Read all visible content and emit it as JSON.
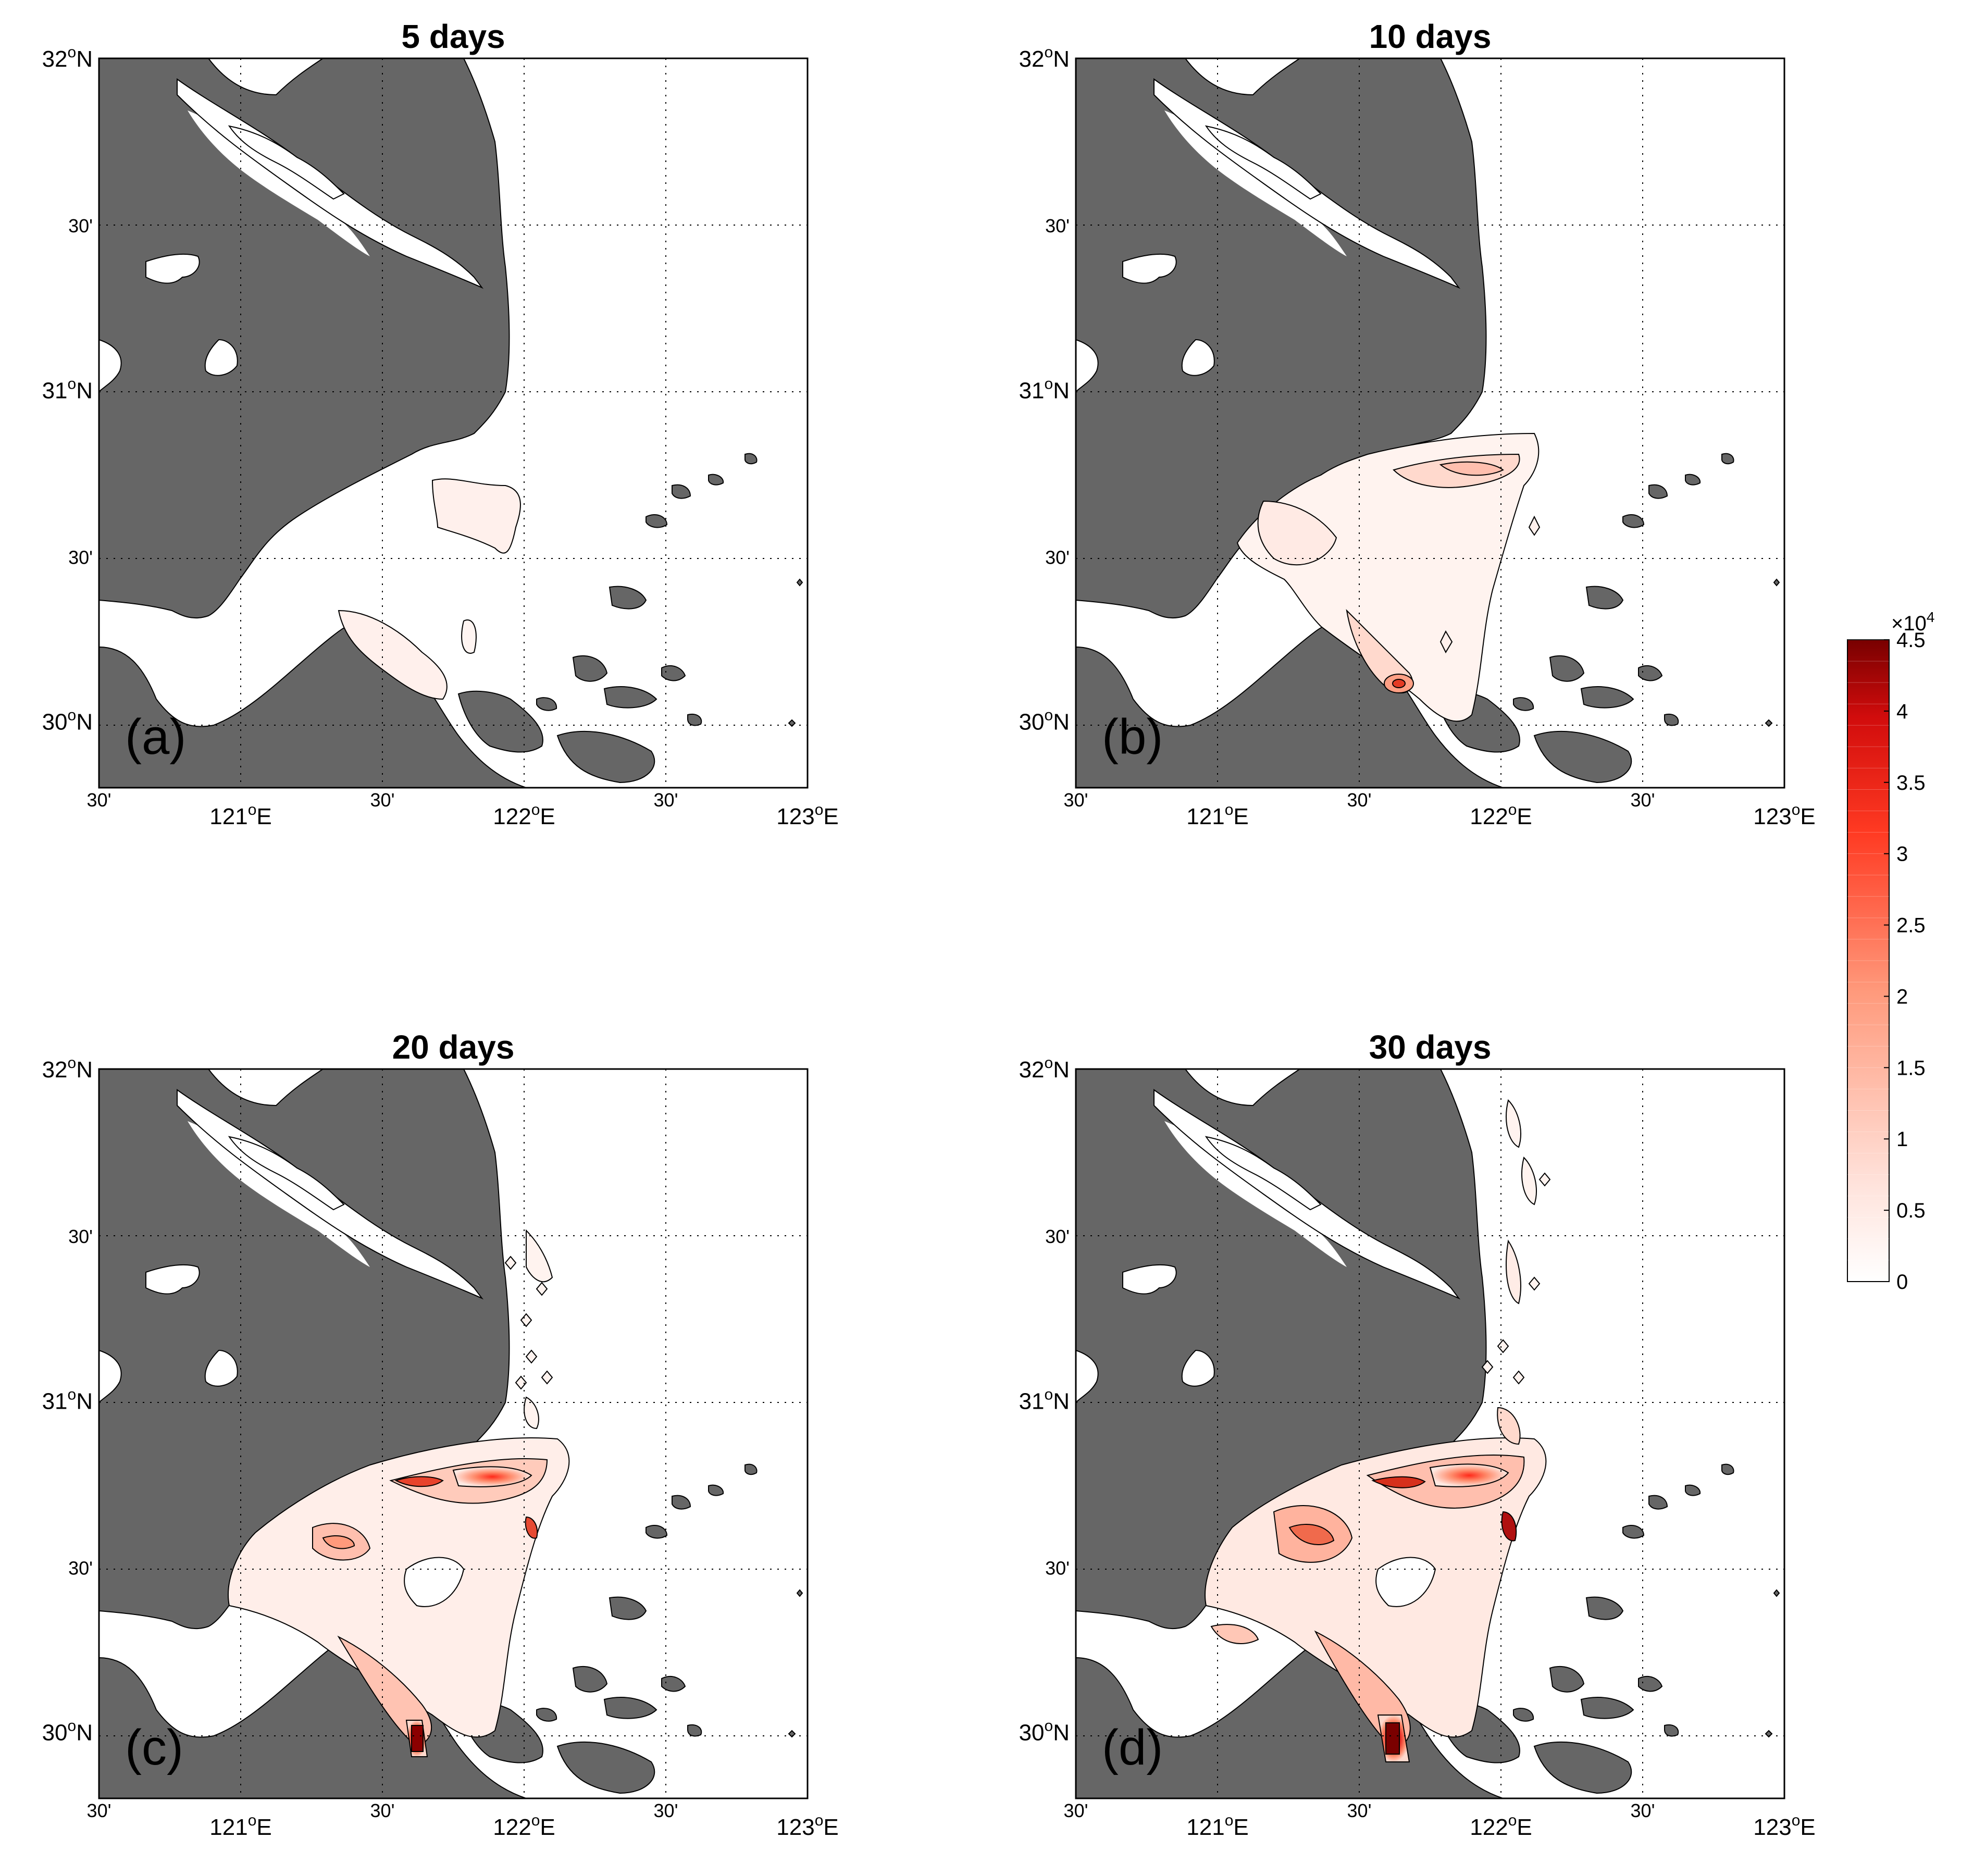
{
  "figure": {
    "panels": [
      {
        "id": "a",
        "title": "5 days",
        "label": "(a)"
      },
      {
        "id": "b",
        "title": "10 days",
        "label": "(b)"
      },
      {
        "id": "c",
        "title": "20 days",
        "label": "(c)"
      },
      {
        "id": "d",
        "title": "30 days",
        "label": "(d)"
      }
    ],
    "axes": {
      "lat_ticks": [
        {
          "value": 32.0,
          "main": "32",
          "sup": "o",
          "suffix": "N"
        },
        {
          "value": 31.5,
          "main": "30'",
          "sup": "",
          "suffix": ""
        },
        {
          "value": 31.0,
          "main": "31",
          "sup": "o",
          "suffix": "N"
        },
        {
          "value": 30.5,
          "main": "30'",
          "sup": "",
          "suffix": ""
        },
        {
          "value": 30.0,
          "main": "30",
          "sup": "o",
          "suffix": "N"
        }
      ],
      "lon_ticks": [
        {
          "value": 120.5,
          "main": "30'",
          "sup": "",
          "suffix": ""
        },
        {
          "value": 121.0,
          "main": "121",
          "sup": "o",
          "suffix": "E"
        },
        {
          "value": 121.5,
          "main": "30'",
          "sup": "",
          "suffix": ""
        },
        {
          "value": 122.0,
          "main": "122",
          "sup": "o",
          "suffix": "E"
        },
        {
          "value": 122.5,
          "main": "30'",
          "sup": "",
          "suffix": ""
        },
        {
          "value": 123.0,
          "main": "123",
          "sup": "o",
          "suffix": "E"
        }
      ],
      "lon_range": [
        120.5,
        123.0
      ],
      "lat_range": [
        29.8,
        32.0
      ],
      "grid": "dotted"
    },
    "colorbar": {
      "exponent_text": "×10",
      "exponent_power": "4",
      "min": 0,
      "max": 4.5,
      "tick_labels": [
        "0",
        "0.5",
        "1",
        "1.5",
        "2",
        "2.5",
        "3",
        "3.5",
        "4",
        "4.5"
      ],
      "color_low": "#ffffff",
      "color_mid": "#ff2a1a",
      "color_high": "#7a0000",
      "levels": 30
    },
    "colors": {
      "land": "#666666",
      "water": "#ffffff",
      "contour_line": "#000000"
    }
  }
}
